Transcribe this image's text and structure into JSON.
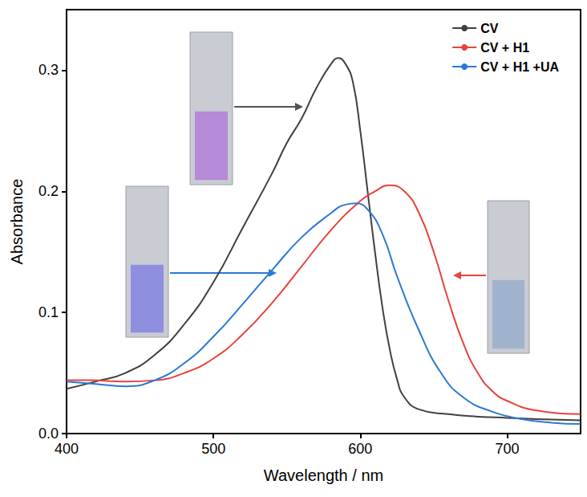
{
  "chart_data": {
    "type": "line",
    "x_label": "Wavelength / nm",
    "y_label": "Absorbance",
    "xlim": [
      400,
      750
    ],
    "xticks": [
      400,
      500,
      600,
      700
    ],
    "ylim": [
      0,
      0.35
    ],
    "yticks": [
      {
        "value": 0,
        "label": "0.0"
      },
      {
        "value": 0.1,
        "label": "0.1"
      },
      {
        "value": 0.2,
        "label": "0.2"
      },
      {
        "value": 0.3,
        "label": "0.3"
      }
    ],
    "grid": false,
    "legend": "upper right",
    "series": [
      {
        "name": "CV",
        "color": "#404040",
        "x": [
          400,
          420,
          440,
          460,
          480,
          500,
          520,
          540,
          550,
          560,
          570,
          580,
          585,
          590,
          595,
          600,
          605,
          610,
          615,
          620,
          625,
          630,
          640,
          660,
          680,
          700,
          720,
          750
        ],
        "values": [
          0.037,
          0.043,
          0.05,
          0.065,
          0.09,
          0.125,
          0.17,
          0.215,
          0.24,
          0.26,
          0.285,
          0.305,
          0.31,
          0.305,
          0.29,
          0.25,
          0.2,
          0.15,
          0.105,
          0.07,
          0.045,
          0.03,
          0.02,
          0.016,
          0.014,
          0.013,
          0.012,
          0.011
        ]
      },
      {
        "name": "CV + H1",
        "color": "#e8423a",
        "x": [
          400,
          415,
          440,
          460,
          480,
          500,
          520,
          540,
          560,
          580,
          600,
          610,
          620,
          630,
          640,
          650,
          660,
          670,
          680,
          690,
          700,
          720,
          750
        ],
        "values": [
          0.044,
          0.044,
          0.043,
          0.044,
          0.05,
          0.062,
          0.082,
          0.108,
          0.138,
          0.168,
          0.192,
          0.2,
          0.205,
          0.2,
          0.182,
          0.15,
          0.11,
          0.075,
          0.05,
          0.035,
          0.027,
          0.019,
          0.016
        ]
      },
      {
        "name": "CV + H1 +UA",
        "color": "#2b79d4",
        "x": [
          400,
          420,
          440,
          460,
          480,
          500,
          520,
          540,
          560,
          580,
          590,
          597,
          605,
          615,
          625,
          640,
          655,
          670,
          690,
          710,
          730,
          750
        ],
        "values": [
          0.043,
          0.041,
          0.039,
          0.044,
          0.058,
          0.08,
          0.107,
          0.135,
          0.162,
          0.182,
          0.189,
          0.19,
          0.185,
          0.165,
          0.13,
          0.085,
          0.05,
          0.03,
          0.018,
          0.012,
          0.009,
          0.008
        ]
      }
    ]
  }
}
